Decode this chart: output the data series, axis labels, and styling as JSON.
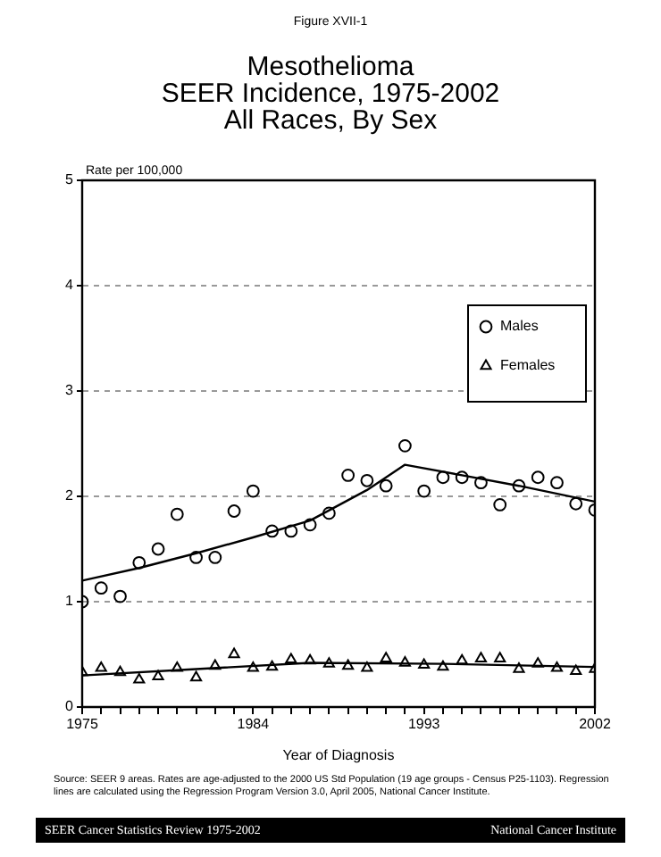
{
  "chart_data": {
    "type": "scatter",
    "title": "Mesothelioma\nSEER Incidence, 1975-2002\nAll Races, By Sex",
    "xlabel": "Year of Diagnosis",
    "ylabel": "Rate per 100,000",
    "xlim": [
      1975,
      2002
    ],
    "xticks": [
      1975,
      {
        "value": 1976,
        "label": null
      },
      {
        "value": 1977,
        "label": null
      },
      {
        "value": 1978,
        "label": null
      },
      {
        "value": 1979,
        "label": null
      },
      {
        "value": 1980,
        "label": null
      },
      {
        "value": 1981,
        "label": null
      },
      {
        "value": 1982,
        "label": null
      },
      {
        "value": 1983,
        "label": null
      },
      1984,
      {
        "value": 1985,
        "label": null
      },
      {
        "value": 1986,
        "label": null
      },
      {
        "value": 1987,
        "label": null
      },
      {
        "value": 1988,
        "label": null
      },
      {
        "value": 1989,
        "label": null
      },
      {
        "value": 1990,
        "label": null
      },
      {
        "value": 1991,
        "label": null
      },
      {
        "value": 1992,
        "label": null
      },
      1993,
      {
        "value": 1994,
        "label": null
      },
      {
        "value": 1995,
        "label": null
      },
      {
        "value": 1996,
        "label": null
      },
      {
        "value": 1997,
        "label": null
      },
      {
        "value": 1998,
        "label": null
      },
      {
        "value": 1999,
        "label": null
      },
      {
        "value": 2000,
        "label": null
      },
      {
        "value": 2001,
        "label": null
      },
      2002
    ],
    "ylim": [
      0,
      5
    ],
    "yticks": [
      0,
      1,
      2,
      3,
      4,
      5
    ],
    "grid": "y",
    "legend": "top right",
    "x": [
      1975,
      1976,
      1977,
      1978,
      1979,
      1980,
      1981,
      1982,
      1983,
      1984,
      1985,
      1986,
      1987,
      1988,
      1989,
      1990,
      1991,
      1992,
      1993,
      1994,
      1995,
      1996,
      1997,
      1998,
      1999,
      2000,
      2001,
      2002
    ],
    "series": [
      {
        "name": "Males",
        "type": "scatter",
        "marker": "circle",
        "color": "#000000",
        "values": [
          1.0,
          1.13,
          1.05,
          1.37,
          1.5,
          1.83,
          1.42,
          1.42,
          1.86,
          2.05,
          1.67,
          1.67,
          1.73,
          1.84,
          2.2,
          2.15,
          2.1,
          2.48,
          2.05,
          2.18,
          2.18,
          2.13,
          1.92,
          2.1,
          2.18,
          2.13,
          1.93,
          1.87
        ]
      },
      {
        "name": "Females",
        "type": "scatter",
        "marker": "triangle",
        "color": "#000000",
        "values": [
          0.33,
          0.37,
          0.33,
          0.26,
          0.29,
          0.37,
          0.28,
          0.39,
          0.5,
          0.37,
          0.38,
          0.45,
          0.44,
          0.41,
          0.39,
          0.37,
          0.46,
          0.42,
          0.4,
          0.38,
          0.44,
          0.46,
          0.46,
          0.36,
          0.41,
          0.37,
          0.34,
          0.36
        ]
      },
      {
        "type": "line",
        "marker": "none",
        "color": "#000000",
        "x": [
          1975,
          1978,
          1981,
          1984,
          1987,
          1990,
          1992,
          1995,
          1998,
          2002
        ],
        "values": [
          1.2,
          1.32,
          1.46,
          1.61,
          1.77,
          2.06,
          2.3,
          2.2,
          2.1,
          1.95
        ]
      },
      {
        "type": "line",
        "marker": "none",
        "color": "#000000",
        "x": [
          1975,
          1981,
          1987,
          1994,
          2002
        ],
        "values": [
          0.3,
          0.36,
          0.42,
          0.41,
          0.38
        ]
      }
    ],
    "annotations": [
      "Figure XVII-1",
      "Source: SEER 9 areas. Rates are age-adjusted to the 2000 US Std Population (19 age groups - Census P25-1103). Regression lines are calculated using the Regression Program Version 3.0, April 2005, National Cancer Institute.",
      "SEER Cancer Statistics Review 1975-2002",
      "National Cancer Institute"
    ]
  }
}
